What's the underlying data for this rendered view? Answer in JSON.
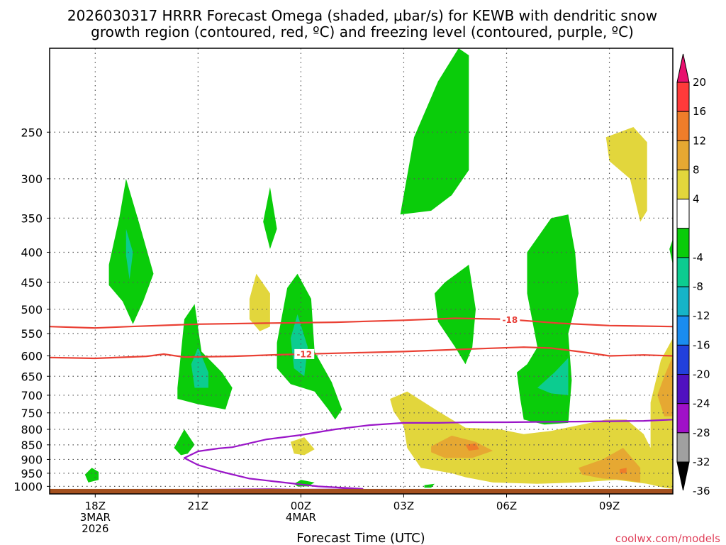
{
  "title_line1": "2026030317 HRRR Forecast Omega (shaded, μbar/s) for KEWB with dendritic snow",
  "title_line2": "growth region (contoured, red, ºC) and freezing level (contoured, purple, ºC)",
  "xlabel": "Forecast Time (UTC)",
  "credit": "coolwx.com/models",
  "chart_data": {
    "type": "heatmap",
    "x_axis": {
      "unit": "forecast hour offset from 2026030317",
      "range": [
        -0.33,
        17.85
      ],
      "ticks": [
        {
          "x": 1,
          "lines": [
            "18Z",
            "3MAR",
            "2026"
          ]
        },
        {
          "x": 4,
          "lines": [
            "21Z"
          ]
        },
        {
          "x": 7,
          "lines": [
            "00Z",
            "4MAR"
          ]
        },
        {
          "x": 10,
          "lines": [
            "03Z"
          ]
        },
        {
          "x": 13,
          "lines": [
            "06Z"
          ]
        },
        {
          "x": 16,
          "lines": [
            "09Z"
          ]
        }
      ]
    },
    "y_axis": {
      "unit": "hPa",
      "scale": "log",
      "reversed": true,
      "range": [
        1030,
        180
      ],
      "ticks": [
        250,
        300,
        350,
        400,
        450,
        500,
        550,
        600,
        650,
        700,
        750,
        800,
        850,
        900,
        950,
        1000
      ]
    },
    "grid": true,
    "colorbar": {
      "placement": "right",
      "unit": "μbar/s",
      "labels": [
        "20",
        "16",
        "12",
        "8",
        "4",
        "-4",
        "-8",
        "-12",
        "-16",
        "-20",
        "-24",
        "-28",
        "-32",
        "-36"
      ],
      "bins": [
        {
          "from": 20,
          "to": 24,
          "color": "#e8106e"
        },
        {
          "from": 16,
          "to": 20,
          "color": "#ff3a3a"
        },
        {
          "from": 12,
          "to": 16,
          "color": "#ef7d2a"
        },
        {
          "from": 8,
          "to": 12,
          "color": "#e6a832"
        },
        {
          "from": 4,
          "to": 8,
          "color": "#e2d63c"
        },
        {
          "from": -4,
          "to": 4,
          "color": "#ffffff"
        },
        {
          "from": -8,
          "to": -4,
          "color": "#0acc0a"
        },
        {
          "from": -12,
          "to": -8,
          "color": "#0ccc90"
        },
        {
          "from": -16,
          "to": -12,
          "color": "#16b4c8"
        },
        {
          "from": -20,
          "to": -16,
          "color": "#1a8cf0"
        },
        {
          "from": -24,
          "to": -20,
          "color": "#2240dc"
        },
        {
          "from": -28,
          "to": -24,
          "color": "#5010c0"
        },
        {
          "from": -32,
          "to": -28,
          "color": "#a010c8"
        },
        {
          "from": -36,
          "to": -32,
          "color": "#a0a0a0"
        },
        {
          "from": -40,
          "to": -36,
          "color": "#000000"
        }
      ]
    },
    "omega_regions": [
      {
        "value": -6,
        "points": [
          [
            0.7,
            955
          ],
          [
            0.9,
            930
          ],
          [
            1.1,
            945
          ],
          [
            1.1,
            975
          ],
          [
            0.8,
            985
          ]
        ]
      },
      {
        "value": -6,
        "points": [
          [
            1.4,
            420
          ],
          [
            1.7,
            350
          ],
          [
            1.9,
            300
          ],
          [
            2.3,
            360
          ],
          [
            2.7,
            435
          ],
          [
            2.4,
            485
          ],
          [
            2.1,
            530
          ],
          [
            1.8,
            485
          ],
          [
            1.4,
            455
          ]
        ]
      },
      {
        "value": -10,
        "points": [
          [
            1.9,
            365
          ],
          [
            2.1,
            400
          ],
          [
            2.0,
            445
          ],
          [
            1.9,
            405
          ]
        ]
      },
      {
        "value": -6,
        "points": [
          [
            3.3,
            860
          ],
          [
            3.6,
            800
          ],
          [
            3.9,
            850
          ],
          [
            3.7,
            880
          ],
          [
            3.5,
            885
          ]
        ]
      },
      {
        "value": -6,
        "points": [
          [
            3.4,
            680
          ],
          [
            3.6,
            520
          ],
          [
            3.9,
            490
          ],
          [
            4.1,
            590
          ],
          [
            4.7,
            640
          ],
          [
            5.0,
            680
          ],
          [
            4.8,
            740
          ],
          [
            4.0,
            725
          ],
          [
            3.4,
            710
          ]
        ]
      },
      {
        "value": -10,
        "points": [
          [
            3.8,
            620
          ],
          [
            4.0,
            580
          ],
          [
            4.3,
            640
          ],
          [
            4.3,
            680
          ],
          [
            3.9,
            680
          ]
        ]
      },
      {
        "value": -6,
        "points": [
          [
            5.9,
            355
          ],
          [
            6.1,
            310
          ],
          [
            6.3,
            365
          ],
          [
            6.1,
            395
          ]
        ]
      },
      {
        "value": -6,
        "points": [
          [
            6.3,
            570
          ],
          [
            6.6,
            460
          ],
          [
            6.9,
            435
          ],
          [
            7.3,
            480
          ],
          [
            7.4,
            590
          ],
          [
            7.9,
            665
          ],
          [
            8.2,
            740
          ],
          [
            8.0,
            770
          ],
          [
            7.8,
            740
          ],
          [
            7.4,
            690
          ],
          [
            6.7,
            670
          ],
          [
            6.3,
            630
          ]
        ]
      },
      {
        "value": -10,
        "points": [
          [
            6.7,
            560
          ],
          [
            6.9,
            510
          ],
          [
            7.2,
            580
          ],
          [
            7.1,
            650
          ],
          [
            6.8,
            630
          ]
        ]
      },
      {
        "value": -6,
        "points": [
          [
            6.8,
            990
          ],
          [
            7.0,
            975
          ],
          [
            7.4,
            985
          ],
          [
            7.2,
            1000
          ],
          [
            6.9,
            1000
          ]
        ]
      },
      {
        "value": 6,
        "points": [
          [
            5.5,
            480
          ],
          [
            5.7,
            435
          ],
          [
            6.1,
            470
          ],
          [
            6.1,
            535
          ],
          [
            5.8,
            545
          ],
          [
            5.5,
            520
          ]
        ]
      },
      {
        "value": 6,
        "points": [
          [
            6.7,
            840
          ],
          [
            7.1,
            825
          ],
          [
            7.4,
            865
          ],
          [
            7.1,
            885
          ],
          [
            6.8,
            880
          ]
        ]
      },
      {
        "value": -6,
        "points": [
          [
            9.9,
            345
          ],
          [
            10.3,
            255
          ],
          [
            11.0,
            205
          ],
          [
            11.6,
            180
          ],
          [
            11.9,
            185
          ],
          [
            11.9,
            290
          ],
          [
            11.4,
            320
          ],
          [
            10.8,
            340
          ],
          [
            9.9,
            345
          ]
        ]
      },
      {
        "value": -6,
        "points": [
          [
            10.9,
            470
          ],
          [
            11.2,
            450
          ],
          [
            11.9,
            420
          ],
          [
            12.1,
            500
          ],
          [
            12.0,
            580
          ],
          [
            11.8,
            620
          ],
          [
            11.5,
            580
          ],
          [
            11.0,
            525
          ]
        ]
      },
      {
        "value": -6,
        "points": [
          [
            13.3,
            640
          ],
          [
            13.6,
            620
          ],
          [
            13.9,
            580
          ],
          [
            13.6,
            470
          ],
          [
            13.6,
            400
          ],
          [
            14.3,
            350
          ],
          [
            14.8,
            345
          ],
          [
            15.0,
            400
          ],
          [
            15.1,
            470
          ],
          [
            14.8,
            550
          ],
          [
            14.9,
            660
          ],
          [
            14.8,
            780
          ],
          [
            14.1,
            785
          ],
          [
            13.5,
            770
          ],
          [
            13.4,
            710
          ]
        ]
      },
      {
        "value": -10,
        "points": [
          [
            13.9,
            680
          ],
          [
            14.4,
            640
          ],
          [
            14.8,
            605
          ],
          [
            14.8,
            700
          ],
          [
            14.3,
            695
          ]
        ]
      },
      {
        "value": -6,
        "points": [
          [
            10.6,
            995
          ],
          [
            10.9,
            990
          ],
          [
            10.8,
            1005
          ],
          [
            10.6,
            1005
          ]
        ]
      },
      {
        "value": 6,
        "points": [
          [
            15.9,
            255
          ],
          [
            16.7,
            245
          ],
          [
            17.1,
            260
          ],
          [
            17.1,
            340
          ],
          [
            16.9,
            355
          ],
          [
            16.6,
            300
          ],
          [
            16.0,
            280
          ]
        ]
      },
      {
        "value": 6,
        "points": [
          [
            9.6,
            710
          ],
          [
            10.1,
            690
          ],
          [
            11.0,
            745
          ],
          [
            11.8,
            795
          ],
          [
            12.8,
            800
          ],
          [
            13.5,
            815
          ],
          [
            14.3,
            805
          ],
          [
            15.2,
            785
          ],
          [
            15.9,
            770
          ],
          [
            16.5,
            770
          ],
          [
            17.0,
            815
          ],
          [
            17.2,
            860
          ],
          [
            17.2,
            720
          ],
          [
            17.5,
            610
          ],
          [
            17.85,
            560
          ],
          [
            17.85,
            1010
          ],
          [
            17.6,
            1005
          ],
          [
            17.1,
            990
          ],
          [
            16.2,
            975
          ],
          [
            15.1,
            985
          ],
          [
            13.9,
            990
          ],
          [
            12.6,
            985
          ],
          [
            11.8,
            965
          ],
          [
            11.4,
            950
          ],
          [
            10.5,
            930
          ],
          [
            10.1,
            860
          ],
          [
            10.0,
            790
          ],
          [
            9.7,
            745
          ]
        ]
      },
      {
        "value": 10,
        "points": [
          [
            10.8,
            855
          ],
          [
            11.4,
            820
          ],
          [
            12.1,
            840
          ],
          [
            12.6,
            870
          ],
          [
            12.0,
            895
          ],
          [
            11.2,
            895
          ],
          [
            10.8,
            875
          ]
        ]
      },
      {
        "value": 14,
        "points": [
          [
            11.8,
            850
          ],
          [
            12.1,
            845
          ],
          [
            12.2,
            865
          ],
          [
            11.9,
            870
          ]
        ]
      },
      {
        "value": 10,
        "points": [
          [
            15.1,
            930
          ],
          [
            15.8,
            900
          ],
          [
            16.4,
            860
          ],
          [
            16.9,
            930
          ],
          [
            16.9,
            985
          ],
          [
            16.4,
            975
          ],
          [
            15.8,
            970
          ],
          [
            15.2,
            955
          ]
        ]
      },
      {
        "value": 14,
        "points": [
          [
            16.3,
            935
          ],
          [
            16.5,
            930
          ],
          [
            16.5,
            950
          ],
          [
            16.3,
            950
          ]
        ]
      },
      {
        "value": 10,
        "points": [
          [
            17.4,
            700
          ],
          [
            17.6,
            650
          ],
          [
            17.85,
            600
          ],
          [
            17.85,
            760
          ],
          [
            17.6,
            760
          ]
        ]
      },
      {
        "value": -6,
        "points": [
          [
            17.75,
            395
          ],
          [
            17.85,
            380
          ],
          [
            17.85,
            420
          ]
        ]
      }
    ],
    "dgz_contours": [
      {
        "label": "-18",
        "label_x": 13.1,
        "points": [
          [
            -0.33,
            535
          ],
          [
            1.0,
            538
          ],
          [
            2.0,
            535
          ],
          [
            4.0,
            530
          ],
          [
            6.0,
            528
          ],
          [
            8.0,
            526
          ],
          [
            10.0,
            522
          ],
          [
            11.5,
            518
          ],
          [
            13.0,
            520
          ],
          [
            14.5,
            528
          ],
          [
            16.0,
            533
          ],
          [
            17.85,
            535
          ]
        ]
      },
      {
        "label": "-12",
        "label_x": 7.1,
        "points": [
          [
            -0.33,
            604
          ],
          [
            1.0,
            606
          ],
          [
            2.5,
            601
          ],
          [
            3.0,
            596
          ],
          [
            3.6,
            603
          ],
          [
            5.0,
            601
          ],
          [
            6.5,
            597
          ],
          [
            8.5,
            593
          ],
          [
            10.0,
            590
          ],
          [
            12.0,
            584
          ],
          [
            13.5,
            580
          ],
          [
            14.3,
            582
          ],
          [
            15.3,
            592
          ],
          [
            16.0,
            600
          ],
          [
            17.0,
            598
          ],
          [
            17.85,
            600
          ]
        ]
      }
    ],
    "freezing_level": {
      "points": [
        [
          -0.33,
          1018
        ],
        [
          1.5,
          1014
        ],
        [
          2.0,
          1015
        ],
        [
          3.5,
          1015
        ],
        [
          4.5,
          1013
        ],
        [
          6.0,
          1011
        ],
        [
          7.0,
          1013
        ],
        [
          8.0,
          1012
        ],
        [
          8.8,
          1010
        ],
        [
          7.5,
          1000
        ],
        [
          6.5,
          985
        ],
        [
          5.5,
          970
        ],
        [
          4.7,
          945
        ],
        [
          4.0,
          920
        ],
        [
          3.6,
          895
        ],
        [
          4.0,
          872
        ],
        [
          4.6,
          862
        ],
        [
          5.0,
          858
        ],
        [
          6.0,
          832
        ],
        [
          7.0,
          818
        ],
        [
          8.0,
          800
        ],
        [
          9.0,
          787
        ],
        [
          10.0,
          780
        ],
        [
          11.0,
          780
        ],
        [
          12.0,
          778
        ],
        [
          13.0,
          778
        ],
        [
          14.0,
          777
        ],
        [
          15.0,
          776
        ],
        [
          16.0,
          775
        ],
        [
          17.0,
          774
        ],
        [
          17.85,
          770
        ]
      ]
    },
    "ground_pressure": 1010
  }
}
